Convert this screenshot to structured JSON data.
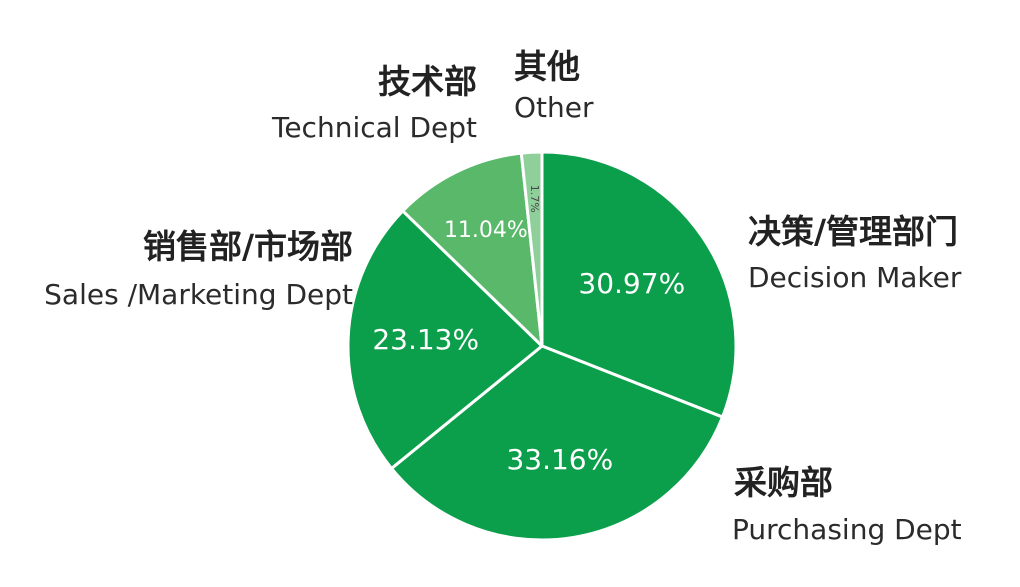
{
  "chart_data": {
    "type": "pie",
    "title": "",
    "slices": [
      {
        "name_zh": "决策/管理部门",
        "name_en": "Decision Maker",
        "value": 30.97,
        "label": "30.97%",
        "color": "#0b9e4b"
      },
      {
        "name_zh": "采购部",
        "name_en": "Purchasing Dept",
        "value": 33.16,
        "label": "33.16%",
        "color": "#0b9e4b"
      },
      {
        "name_zh": "销售部/市场部",
        "name_en": "Sales /Marketing Dept",
        "value": 23.13,
        "label": "23.13%",
        "color": "#0b9e4b"
      },
      {
        "name_zh": "技术部",
        "name_en": "Technical Dept",
        "value": 11.04,
        "label": "11.04%",
        "color": "#5ab86a"
      },
      {
        "name_zh": "其他",
        "name_en": "Other",
        "value": 1.7,
        "label": "1.7%",
        "color": "#8fd09a"
      }
    ]
  }
}
